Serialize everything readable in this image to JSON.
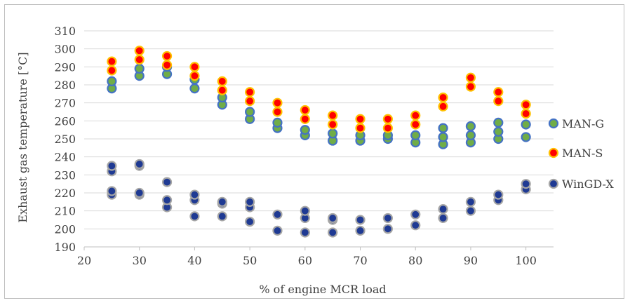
{
  "chart_data": {
    "type": "scatter",
    "title": "",
    "xlabel": "% of engine MCR load",
    "ylabel": "Exhaust gas temperature [°C]",
    "xlim": [
      20,
      105
    ],
    "ylim": [
      190,
      310
    ],
    "x_ticks": [
      "20",
      "30",
      "40",
      "50",
      "60",
      "70",
      "80",
      "90",
      "100"
    ],
    "y_ticks": [
      "190",
      "200",
      "210",
      "220",
      "230",
      "240",
      "250",
      "260",
      "270",
      "280",
      "290",
      "300",
      "310"
    ],
    "grid": "horizontal",
    "legend_position": "right",
    "series": [
      {
        "name": "MAN-G",
        "color": "#70ad47",
        "edge": "#4472c4",
        "points": [
          [
            25,
            278
          ],
          [
            25,
            282
          ],
          [
            30,
            285
          ],
          [
            30,
            289
          ],
          [
            35,
            286
          ],
          [
            35,
            290
          ],
          [
            40,
            278
          ],
          [
            40,
            283
          ],
          [
            45,
            269
          ],
          [
            45,
            273
          ],
          [
            50,
            261
          ],
          [
            50,
            265
          ],
          [
            55,
            256
          ],
          [
            55,
            259
          ],
          [
            60,
            252
          ],
          [
            60,
            255
          ],
          [
            65,
            249
          ],
          [
            65,
            253
          ],
          [
            70,
            249
          ],
          [
            70,
            252
          ],
          [
            75,
            250
          ],
          [
            75,
            252
          ],
          [
            80,
            248
          ],
          [
            80,
            252
          ],
          [
            85,
            247
          ],
          [
            85,
            251
          ],
          [
            85,
            256
          ],
          [
            90,
            248
          ],
          [
            90,
            252
          ],
          [
            90,
            257
          ],
          [
            95,
            250
          ],
          [
            95,
            254
          ],
          [
            95,
            259
          ],
          [
            100,
            251
          ],
          [
            100,
            258
          ]
        ]
      },
      {
        "name": "MAN-S",
        "color": "#ff0000",
        "edge": "#ffc000",
        "points": [
          [
            25,
            288
          ],
          [
            25,
            293
          ],
          [
            30,
            294
          ],
          [
            30,
            299
          ],
          [
            35,
            291
          ],
          [
            35,
            296
          ],
          [
            40,
            285
          ],
          [
            40,
            290
          ],
          [
            45,
            277
          ],
          [
            45,
            282
          ],
          [
            50,
            271
          ],
          [
            50,
            276
          ],
          [
            55,
            265
          ],
          [
            55,
            270
          ],
          [
            60,
            261
          ],
          [
            60,
            266
          ],
          [
            65,
            258
          ],
          [
            65,
            263
          ],
          [
            70,
            256
          ],
          [
            70,
            261
          ],
          [
            75,
            256
          ],
          [
            75,
            261
          ],
          [
            80,
            258
          ],
          [
            80,
            263
          ],
          [
            85,
            268
          ],
          [
            85,
            273
          ],
          [
            90,
            279
          ],
          [
            90,
            284
          ],
          [
            95,
            271
          ],
          [
            95,
            276
          ],
          [
            100,
            264
          ],
          [
            100,
            269
          ]
        ]
      },
      {
        "name": "WinGD-X",
        "color": "#1f3a93",
        "edge": "#a5a5a5",
        "points": [
          [
            25,
            219
          ],
          [
            25,
            221
          ],
          [
            25,
            232
          ],
          [
            25,
            235
          ],
          [
            30,
            219
          ],
          [
            30,
            220
          ],
          [
            30,
            235
          ],
          [
            30,
            236
          ],
          [
            35,
            212
          ],
          [
            35,
            216
          ],
          [
            35,
            226
          ],
          [
            40,
            207
          ],
          [
            40,
            216
          ],
          [
            40,
            219
          ],
          [
            45,
            207
          ],
          [
            45,
            214
          ],
          [
            45,
            215
          ],
          [
            50,
            204
          ],
          [
            50,
            212
          ],
          [
            50,
            215
          ],
          [
            55,
            199
          ],
          [
            55,
            208
          ],
          [
            60,
            198
          ],
          [
            60,
            206
          ],
          [
            60,
            210
          ],
          [
            65,
            198
          ],
          [
            65,
            205
          ],
          [
            65,
            206
          ],
          [
            70,
            199
          ],
          [
            70,
            205
          ],
          [
            75,
            200
          ],
          [
            75,
            206
          ],
          [
            80,
            202
          ],
          [
            80,
            208
          ],
          [
            85,
            206
          ],
          [
            85,
            211
          ],
          [
            90,
            210
          ],
          [
            90,
            215
          ],
          [
            95,
            216
          ],
          [
            95,
            219
          ],
          [
            100,
            222
          ],
          [
            100,
            225
          ]
        ]
      }
    ]
  }
}
